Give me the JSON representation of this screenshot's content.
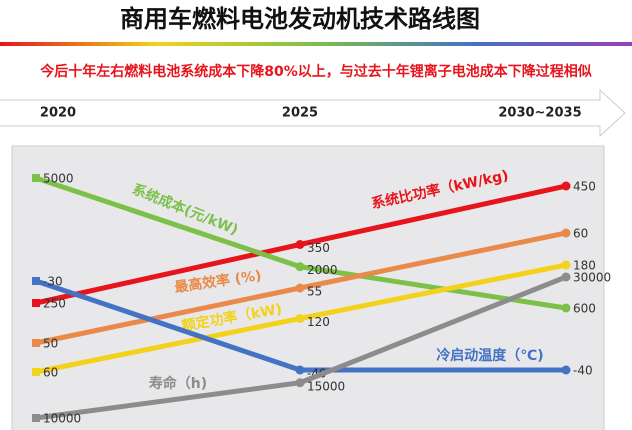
{
  "chart_data": {
    "type": "line",
    "title": "商用车燃料电池发动机技术路线图",
    "subtitle": "今后十年左右燃料电池系统成本下降80%以上，与过去十年锂离子电池成本下降过程相似",
    "categories": [
      "2020",
      "2025",
      "2030~2035"
    ],
    "series": [
      {
        "name": "系统比功率（kW/kg)",
        "color": "#e8141c",
        "values": [
          250,
          350,
          450
        ]
      },
      {
        "name": "系统成本(元/kW)",
        "color": "#7cc04a",
        "values": [
          5000,
          2000,
          600
        ]
      },
      {
        "name": "最高效率 (%)",
        "color": "#e98a4a",
        "values": [
          50,
          55,
          60
        ]
      },
      {
        "name": "额定功率（kW)",
        "color": "#f2d21a",
        "values": [
          60,
          120,
          180
        ]
      },
      {
        "name": "冷启动温度（℃)",
        "color": "#4472c4",
        "values": [
          -30,
          -40,
          -40
        ]
      },
      {
        "name": "寿命（h)",
        "color": "#8c8c8c",
        "values": [
          10000,
          15000,
          30000
        ]
      }
    ]
  }
}
